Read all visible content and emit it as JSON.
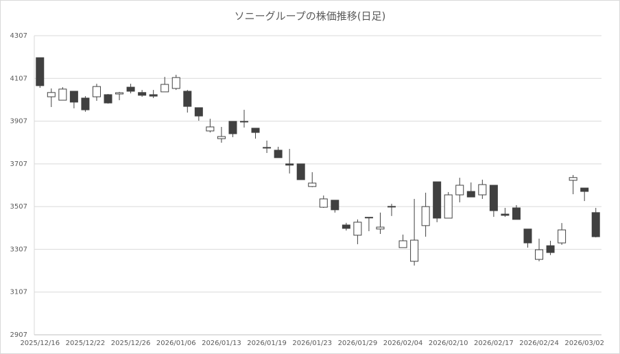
{
  "chart_data": {
    "type": "candlestick",
    "title": "ソニーグループの株価推移(日足)",
    "categories": [
      "2025/12/16",
      null,
      null,
      null,
      "2025/12/22",
      null,
      null,
      null,
      "2025/12/26",
      null,
      null,
      null,
      "2026/01/06",
      null,
      null,
      null,
      "2026/01/13",
      null,
      null,
      null,
      "2026/01/19",
      null,
      null,
      null,
      "2026/01/23",
      null,
      null,
      null,
      "2026/01/29",
      null,
      null,
      null,
      "2026/02/04",
      null,
      null,
      null,
      "2026/02/10",
      null,
      null,
      null,
      "2026/02/17",
      null,
      null,
      null,
      "2026/02/24",
      null,
      null,
      null,
      "2026/03/02",
      null
    ],
    "open": [
      4204,
      4021,
      4005,
      4047,
      4015,
      4021,
      4031,
      4034,
      4066,
      4041,
      4031,
      4044,
      4060,
      4047,
      3970,
      3861,
      3825,
      3906,
      3904,
      3874,
      3781,
      3771,
      3707,
      3707,
      3601,
      3504,
      3537,
      3421,
      3373,
      3454,
      3402,
      3506,
      3315,
      3251,
      3418,
      3623,
      3453,
      3562,
      3578,
      3562,
      3607,
      3472,
      3501,
      3402,
      3260,
      3324,
      3337,
      3630,
      3594,
      3479
    ],
    "high": [
      4204,
      4060,
      4066,
      4047,
      4024,
      4082,
      4034,
      4044,
      4082,
      4053,
      4053,
      4114,
      4124,
      4053,
      3970,
      3918,
      3880,
      3906,
      3960,
      3874,
      3816,
      3787,
      3777,
      3707,
      3668,
      3559,
      3537,
      3431,
      3447,
      3457,
      3479,
      3520,
      3376,
      3543,
      3572,
      3623,
      3575,
      3642,
      3620,
      3633,
      3607,
      3501,
      3514,
      3402,
      3357,
      3347,
      3430,
      3655,
      3594,
      3501
    ],
    "low": [
      4063,
      3973,
      4005,
      3967,
      3951,
      4002,
      3989,
      4005,
      4037,
      4021,
      4015,
      4044,
      4053,
      3947,
      3909,
      3854,
      3806,
      3832,
      3877,
      3825,
      3758,
      3736,
      3662,
      3633,
      3598,
      3501,
      3479,
      3395,
      3331,
      3392,
      3379,
      3463,
      3315,
      3231,
      3366,
      3434,
      3453,
      3527,
      3552,
      3543,
      3459,
      3459,
      3447,
      3315,
      3251,
      3280,
      3328,
      3565,
      3533,
      3363
    ],
    "close": [
      4073,
      4041,
      4057,
      3996,
      3960,
      4069,
      3992,
      4040,
      4047,
      4028,
      4024,
      4079,
      4111,
      3976,
      3931,
      3880,
      3835,
      3848,
      3906,
      3854,
      3784,
      3736,
      3701,
      3633,
      3617,
      3543,
      3492,
      3405,
      3434,
      3457,
      3411,
      3508,
      3347,
      3350,
      3507,
      3453,
      3562,
      3607,
      3552,
      3610,
      3488,
      3466,
      3447,
      3337,
      3305,
      3292,
      3398,
      3643,
      3578,
      3366
    ],
    "up_color": "#ffffff",
    "down_color": "#404040",
    "edge_color": "#404040",
    "ylim": [
      2907,
      4307
    ],
    "yticks": [
      2907,
      3107,
      3307,
      3507,
      3707,
      3907,
      4107,
      4307
    ],
    "grid": true
  }
}
